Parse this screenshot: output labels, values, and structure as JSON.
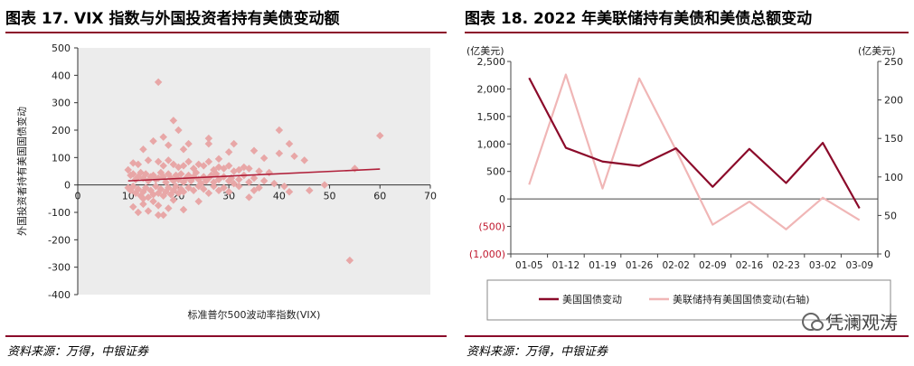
{
  "left": {
    "title": "图表 17. VIX 指数与外国投资者持有美债变动额",
    "source": "资料来源：万得，中银证券"
  },
  "right": {
    "title": "图表 18. 2022 年美联储持有美债和美债总额变动",
    "source": "资料来源：万得，中银证券",
    "watermark": "凭澜观涛"
  },
  "chart_data": [
    {
      "type": "scatter",
      "title": "",
      "xlabel": "标准普尔500波动率指数(VIX)",
      "ylabel": "外国投资者持有美国国债变动",
      "xlim": [
        0,
        70
      ],
      "ylim": [
        -400,
        500
      ],
      "xticks": [
        "0",
        "10",
        "20",
        "30",
        "40",
        "50",
        "60",
        "70"
      ],
      "yticks": [
        "500",
        "400",
        "300",
        "200",
        "100",
        "0",
        "-100",
        "-200",
        "-300",
        "-400"
      ],
      "point_color": "#e8a7a7",
      "trend_color": "#b0203a",
      "trendline": {
        "x": [
          10,
          60
        ],
        "y": [
          15,
          58
        ]
      },
      "points": [
        [
          16,
          375
        ],
        [
          19,
          235
        ],
        [
          17,
          175
        ],
        [
          26,
          170
        ],
        [
          15,
          160
        ],
        [
          40,
          200
        ],
        [
          20,
          200
        ],
        [
          60,
          180
        ],
        [
          22,
          150
        ],
        [
          18,
          145
        ],
        [
          26,
          150
        ],
        [
          31,
          150
        ],
        [
          35,
          125
        ],
        [
          42,
          150
        ],
        [
          13,
          130
        ],
        [
          21,
          130
        ],
        [
          30,
          120
        ],
        [
          40,
          115
        ],
        [
          43,
          105
        ],
        [
          37,
          98
        ],
        [
          45,
          90
        ],
        [
          28,
          95
        ],
        [
          11,
          80
        ],
        [
          12,
          75
        ],
        [
          14,
          90
        ],
        [
          16,
          85
        ],
        [
          17,
          70
        ],
        [
          18,
          90
        ],
        [
          19,
          75
        ],
        [
          20,
          65
        ],
        [
          21,
          70
        ],
        [
          22,
          85
        ],
        [
          23,
          60
        ],
        [
          24,
          75
        ],
        [
          25,
          70
        ],
        [
          26,
          85
        ],
        [
          27,
          55
        ],
        [
          28,
          65
        ],
        [
          29,
          60
        ],
        [
          30,
          70
        ],
        [
          31,
          50
        ],
        [
          32,
          55
        ],
        [
          33,
          65
        ],
        [
          34,
          60
        ],
        [
          36,
          50
        ],
        [
          38,
          45
        ],
        [
          10,
          55
        ],
        [
          10.5,
          35
        ],
        [
          11,
          40
        ],
        [
          11.5,
          20
        ],
        [
          12,
          30
        ],
        [
          12.5,
          45
        ],
        [
          13,
          25
        ],
        [
          13.5,
          40
        ],
        [
          14,
          15
        ],
        [
          14.5,
          30
        ],
        [
          15,
          35
        ],
        [
          15.5,
          20
        ],
        [
          16,
          25
        ],
        [
          16.5,
          45
        ],
        [
          17,
          30
        ],
        [
          17.5,
          10
        ],
        [
          18,
          40
        ],
        [
          18.5,
          25
        ],
        [
          19,
          15
        ],
        [
          19.5,
          35
        ],
        [
          20,
          20
        ],
        [
          20.5,
          40
        ],
        [
          21,
          10
        ],
        [
          21.5,
          25
        ],
        [
          22,
          35
        ],
        [
          22.5,
          15
        ],
        [
          23,
          30
        ],
        [
          23.5,
          45
        ],
        [
          24,
          20
        ],
        [
          24.5,
          5
        ],
        [
          25,
          30
        ],
        [
          25.5,
          15
        ],
        [
          26,
          25
        ],
        [
          26.5,
          35
        ],
        [
          27,
          10
        ],
        [
          27.5,
          40
        ],
        [
          28,
          20
        ],
        [
          29,
          30
        ],
        [
          30,
          15
        ],
        [
          30.5,
          25
        ],
        [
          31,
          5
        ],
        [
          32,
          20
        ],
        [
          33,
          35
        ],
        [
          34,
          10
        ],
        [
          35,
          25
        ],
        [
          37,
          15
        ],
        [
          39,
          5
        ],
        [
          41,
          -5
        ],
        [
          10,
          -10
        ],
        [
          10.5,
          -20
        ],
        [
          11,
          -5
        ],
        [
          11.5,
          -30
        ],
        [
          12,
          -15
        ],
        [
          12.5,
          -40
        ],
        [
          13,
          -25
        ],
        [
          13.5,
          -10
        ],
        [
          14,
          -45
        ],
        [
          14.5,
          -20
        ],
        [
          15,
          -35
        ],
        [
          15.5,
          -5
        ],
        [
          16,
          -30
        ],
        [
          16.5,
          -15
        ],
        [
          17,
          -40
        ],
        [
          17.5,
          -25
        ],
        [
          18,
          -10
        ],
        [
          18.5,
          -35
        ],
        [
          19,
          -20
        ],
        [
          19.5,
          -5
        ],
        [
          20,
          -30
        ],
        [
          20.5,
          -15
        ],
        [
          21,
          -25
        ],
        [
          22,
          -10
        ],
        [
          23,
          -20
        ],
        [
          24,
          -5
        ],
        [
          25,
          -15
        ],
        [
          26,
          -30
        ],
        [
          27,
          -5
        ],
        [
          28,
          -20
        ],
        [
          29,
          -10
        ],
        [
          30,
          -25
        ],
        [
          32,
          -5
        ],
        [
          34,
          -45
        ],
        [
          36,
          -10
        ],
        [
          11,
          -80
        ],
        [
          12,
          -100
        ],
        [
          13,
          -70
        ],
        [
          14,
          -95
        ],
        [
          13,
          -50
        ],
        [
          15,
          -60
        ],
        [
          16,
          -110
        ],
        [
          17,
          -110
        ],
        [
          18,
          -85
        ],
        [
          16,
          -75
        ],
        [
          21,
          -90
        ],
        [
          19,
          -55
        ],
        [
          24,
          -60
        ],
        [
          35,
          -20
        ],
        [
          42,
          -25
        ],
        [
          46,
          -20
        ],
        [
          49,
          0
        ],
        [
          54,
          -275
        ],
        [
          55,
          60
        ]
      ]
    },
    {
      "type": "line",
      "title": "",
      "left_axis_label": "(亿美元)",
      "right_axis_label": "(亿美元)",
      "x": [
        "01-05",
        "01-12",
        "01-19",
        "01-26",
        "02-02",
        "02-09",
        "02-16",
        "02-23",
        "03-02",
        "03-09"
      ],
      "yticks_left": [
        "2,500",
        "2,000",
        "1,500",
        "1,000",
        "500",
        "0",
        "(500)",
        "(1,000)"
      ],
      "yticks_right": [
        "250",
        "200",
        "150",
        "100",
        "50",
        "0"
      ],
      "ylim_left": [
        -1000,
        2500
      ],
      "ylim_right": [
        0,
        250
      ],
      "neg_tick_color": "#c0182e",
      "series": [
        {
          "name": "美国国债变动",
          "axis": "left",
          "color": "#8b0a2a",
          "values": [
            2200,
            930,
            680,
            600,
            920,
            220,
            910,
            290,
            1020,
            -170
          ]
        },
        {
          "name": "美联储持有美国国债变动(右轴)",
          "axis": "right",
          "color": "#f0b6b6",
          "values": [
            90,
            233,
            85,
            228,
            135,
            38,
            68,
            32,
            73,
            44
          ]
        }
      ],
      "legend_position": "bottom"
    }
  ]
}
